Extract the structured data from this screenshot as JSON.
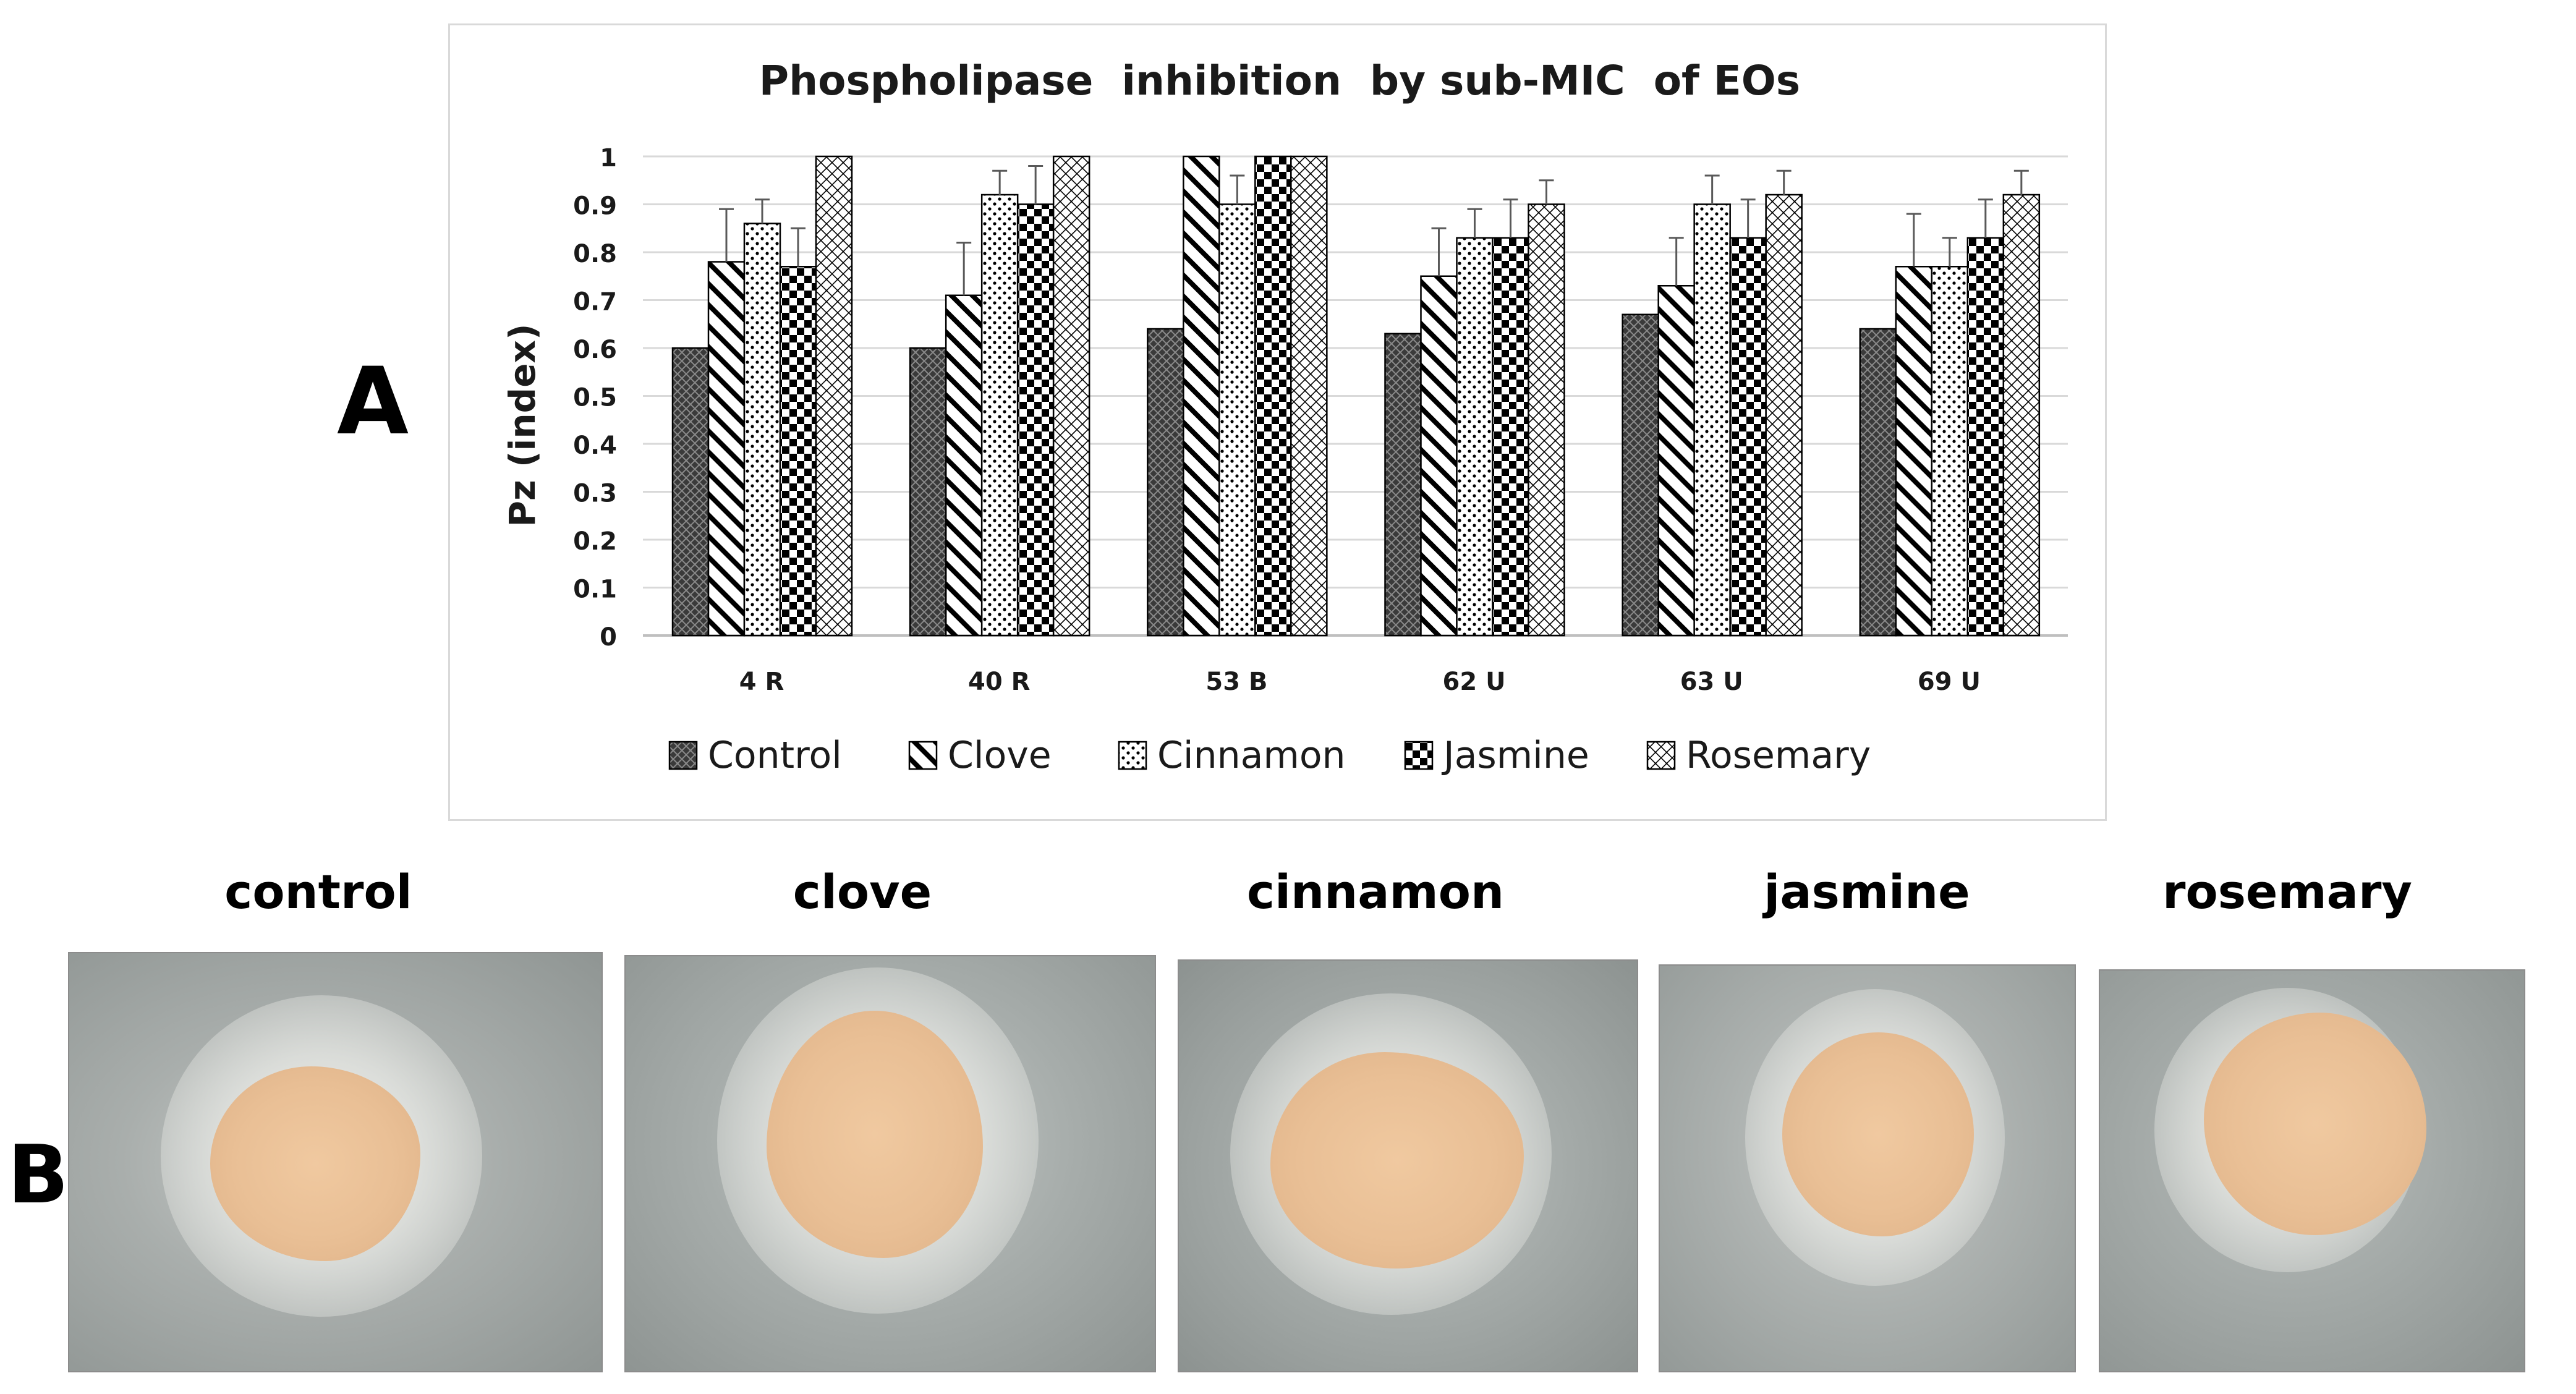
{
  "panel_labels": {
    "a": "A",
    "b": "B"
  },
  "chart_data": {
    "type": "bar",
    "title": "Phospholipase  inhibition  by sub-MIC  of EOs",
    "ylabel": "Pz (index)",
    "xlabel": "",
    "ylim": [
      0,
      1
    ],
    "yticks": [
      0,
      0.1,
      0.2,
      0.3,
      0.4,
      0.5,
      0.6,
      0.7,
      0.8,
      0.9,
      1
    ],
    "ytick_labels": [
      "0",
      "0.1",
      "0.2",
      "0.3",
      "0.4",
      "0.5",
      "0.6",
      "0.7",
      "0.8",
      "0.9",
      "1"
    ],
    "grid": true,
    "legend_position": "bottom",
    "categories": [
      "4 R",
      "40 R",
      "53 B",
      "62 U",
      "63 U",
      "69 U"
    ],
    "series": [
      {
        "name": "Control",
        "pattern": "crosshatch-dark",
        "values": [
          0.6,
          0.6,
          0.64,
          0.63,
          0.67,
          0.64
        ],
        "errors": [
          0,
          0,
          0,
          0,
          0,
          0
        ]
      },
      {
        "name": "Clove",
        "pattern": "diagonal-stripes",
        "values": [
          0.78,
          0.71,
          1.0,
          0.75,
          0.73,
          0.77
        ],
        "errors": [
          0.11,
          0.11,
          0,
          0.1,
          0.1,
          0.11
        ]
      },
      {
        "name": "Cinnamon",
        "pattern": "dots",
        "values": [
          0.86,
          0.92,
          0.9,
          0.83,
          0.9,
          0.77
        ],
        "errors": [
          0.05,
          0.05,
          0.06,
          0.06,
          0.06,
          0.06
        ]
      },
      {
        "name": "Jasmine",
        "pattern": "checkerboard",
        "values": [
          0.77,
          0.9,
          1.0,
          0.83,
          0.83,
          0.83
        ],
        "errors": [
          0.08,
          0.08,
          0,
          0.08,
          0.08,
          0.08
        ]
      },
      {
        "name": "Rosemary",
        "pattern": "light-crosshatch",
        "values": [
          1.0,
          1.0,
          1.0,
          0.9,
          0.92,
          0.92
        ],
        "errors": [
          0,
          0,
          0,
          0.05,
          0.05,
          0.05
        ]
      }
    ],
    "legend_labels": [
      "Control",
      "Clove",
      "Cinnamon",
      "Jasmine",
      "Rosemary"
    ]
  },
  "photos": [
    {
      "label": "control"
    },
    {
      "label": "clove"
    },
    {
      "label": "cinnamon"
    },
    {
      "label": "jasmine"
    },
    {
      "label": "rosemary"
    }
  ],
  "colors": {
    "plate_background": "#9aa09e",
    "colony": "#e9bf95",
    "bar_stroke": "#000000",
    "grid": "#d9d9d9"
  }
}
